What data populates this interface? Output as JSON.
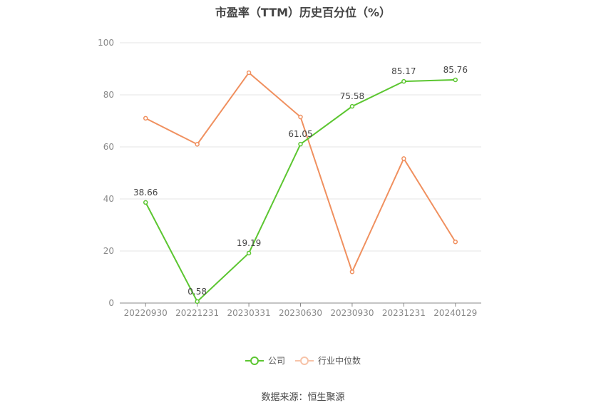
{
  "chart_data": {
    "type": "line",
    "title": "市盈率（TTM）历史百分位（%）",
    "categories": [
      "20220930",
      "20221231",
      "20230331",
      "20230630",
      "20230930",
      "20231231",
      "20240129"
    ],
    "ylim": [
      0,
      100
    ],
    "yticks": [
      0,
      20,
      40,
      60,
      80,
      100
    ],
    "grid": true,
    "legend_position": "bottom",
    "series": [
      {
        "name": "公司",
        "color": "#5cc631",
        "values": [
          38.66,
          0.58,
          19.19,
          61.05,
          75.58,
          85.17,
          85.76
        ],
        "data_labels": [
          "38.66",
          "0.58",
          "19.19",
          "61.05",
          "75.58",
          "85.17",
          "85.76"
        ]
      },
      {
        "name": "行业中位数",
        "color": "#f0905f",
        "values": [
          71.0,
          61.0,
          88.5,
          71.5,
          12.0,
          55.5,
          23.5
        ]
      }
    ]
  },
  "source": "数据来源：恒生聚源"
}
